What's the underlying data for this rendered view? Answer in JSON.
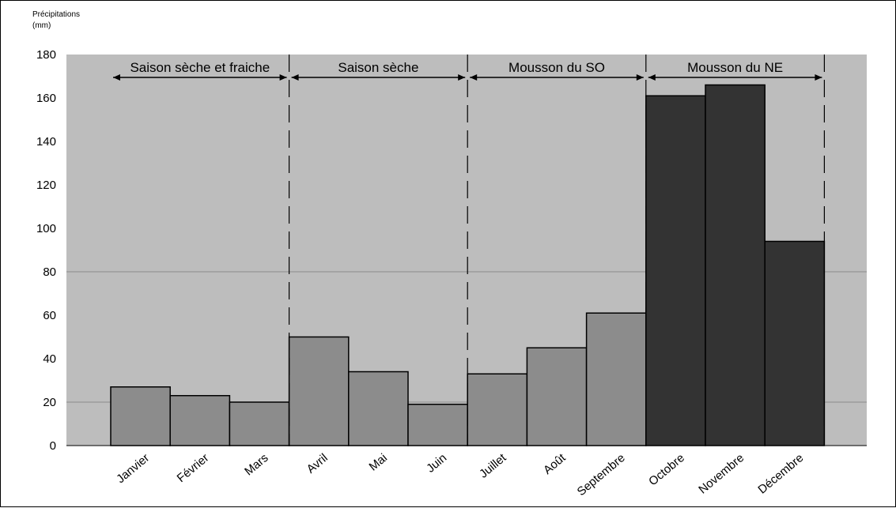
{
  "chart_data": {
    "type": "bar",
    "ylabel_line1": "Précipitations",
    "ylabel_line2": "(mm)",
    "ylim": [
      0,
      180
    ],
    "yticks": [
      0,
      20,
      40,
      60,
      80,
      100,
      120,
      140,
      160,
      180
    ],
    "categories": [
      "Janvier",
      "Février",
      "Mars",
      "Avril",
      "Mai",
      "Juin",
      "Juillet",
      "Août",
      "Septembre",
      "Octobre",
      "Novembre",
      "Décembre"
    ],
    "values": [
      27,
      23,
      20,
      50,
      34,
      19,
      33,
      45,
      61,
      161,
      166,
      94
    ],
    "bar_colors": [
      "#8c8c8c",
      "#8c8c8c",
      "#8c8c8c",
      "#8c8c8c",
      "#8c8c8c",
      "#8c8c8c",
      "#8c8c8c",
      "#8c8c8c",
      "#8c8c8c",
      "#333333",
      "#333333",
      "#333333"
    ],
    "seasons": [
      {
        "label": "Saison sèche et fraiche",
        "start": 0,
        "end": 3
      },
      {
        "label": "Saison sèche",
        "start": 3,
        "end": 6
      },
      {
        "label": "Mousson du SO",
        "start": 6,
        "end": 9
      },
      {
        "label": "Mousson du NE",
        "start": 9,
        "end": 12
      }
    ],
    "gridlines": [
      20,
      80
    ],
    "plot_background": "#bdbdbd",
    "grid": true,
    "legend": "none"
  }
}
